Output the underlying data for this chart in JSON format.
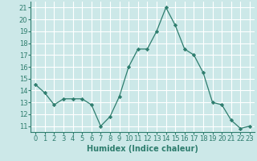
{
  "x": [
    0,
    1,
    2,
    3,
    4,
    5,
    6,
    7,
    8,
    9,
    10,
    11,
    12,
    13,
    14,
    15,
    16,
    17,
    18,
    19,
    20,
    21,
    22,
    23
  ],
  "y": [
    14.5,
    13.8,
    12.8,
    13.3,
    13.3,
    13.3,
    12.8,
    11.0,
    11.8,
    13.5,
    16.0,
    17.5,
    17.5,
    19.0,
    21.0,
    19.5,
    17.5,
    17.0,
    15.5,
    13.0,
    12.8,
    11.5,
    10.8,
    11.0
  ],
  "line_color": "#2e7d6e",
  "marker": "D",
  "marker_size": 2.2,
  "bg_color": "#cce8e8",
  "grid_color": "#ffffff",
  "xlabel": "Humidex (Indice chaleur)",
  "xlabel_fontsize": 7,
  "tick_fontsize": 6,
  "xlim": [
    -0.5,
    23.5
  ],
  "ylim": [
    10.5,
    21.5
  ],
  "yticks": [
    11,
    12,
    13,
    14,
    15,
    16,
    17,
    18,
    19,
    20,
    21
  ],
  "xticks": [
    0,
    1,
    2,
    3,
    4,
    5,
    6,
    7,
    8,
    9,
    10,
    11,
    12,
    13,
    14,
    15,
    16,
    17,
    18,
    19,
    20,
    21,
    22,
    23
  ]
}
